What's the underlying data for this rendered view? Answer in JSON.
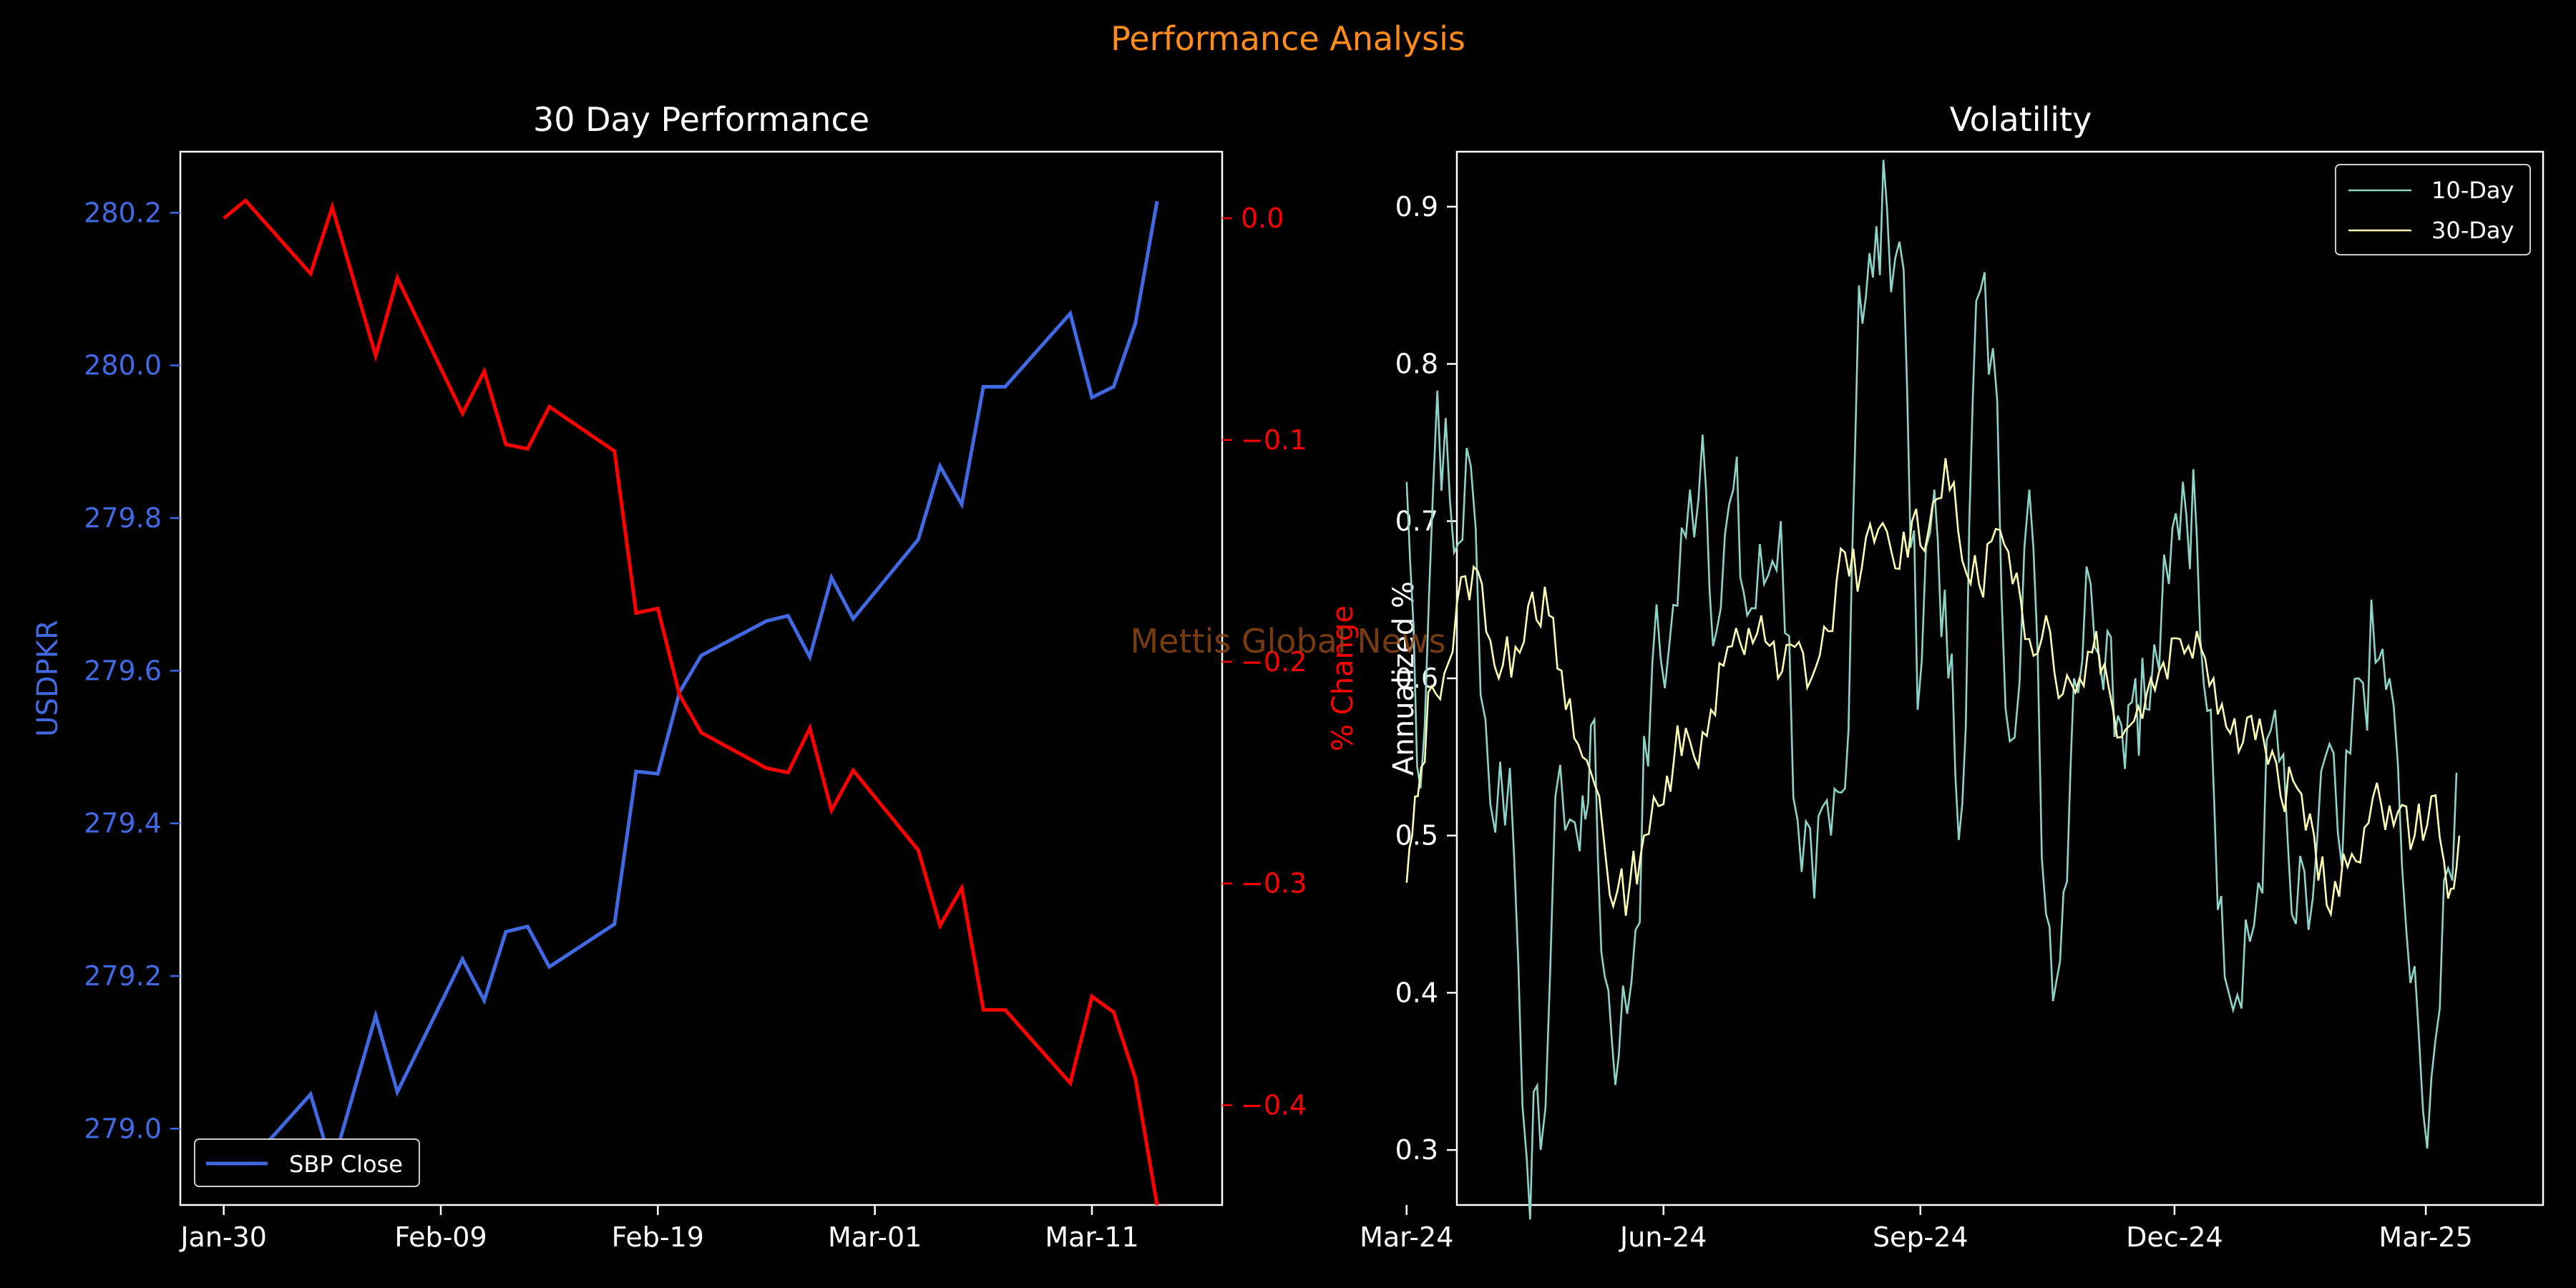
{
  "suptitle": "Performance Analysis",
  "watermark": "Mettis Global News",
  "colors": {
    "background": "#000000",
    "title_orange": "#ff8c1a",
    "close_line": "#4169e1",
    "change_line": "#ff0000",
    "vol10": "#8dd3c7",
    "vol30": "#ffffb3",
    "watermark": "#8b4513"
  },
  "chart_data": [
    {
      "type": "line",
      "title": "30 Day Performance",
      "xlabel": "",
      "ylabel": "USDPKR",
      "ylabel_right": "% Change",
      "ylim": [
        278.9,
        280.28
      ],
      "ylim_right": [
        -0.445,
        0.03
      ],
      "xlim": [
        "2025-01-28",
        "2025-03-17"
      ],
      "x_ticks": [
        "Jan-30",
        "Feb-09",
        "Feb-19",
        "Mar-01",
        "Mar-11"
      ],
      "x_tick_dates": [
        "2025-01-30",
        "2025-02-09",
        "2025-02-19",
        "2025-03-01",
        "2025-03-11"
      ],
      "y_ticks": [
        "279.0",
        "279.2",
        "279.4",
        "279.6",
        "279.8",
        "280.0",
        "280.2"
      ],
      "y_ticks_right": [
        "0.0",
        "−0.1",
        "−0.2",
        "−0.3",
        "−0.4"
      ],
      "legend_placement": "lower-left",
      "grid": false,
      "x": [
        "2025-01-30",
        "2025-01-31",
        "2025-02-03",
        "2025-02-04",
        "2025-02-06",
        "2025-02-07",
        "2025-02-10",
        "2025-02-11",
        "2025-02-12",
        "2025-02-13",
        "2025-02-14",
        "2025-02-17",
        "2025-02-18",
        "2025-02-19",
        "2025-02-20",
        "2025-02-21",
        "2025-02-24",
        "2025-02-25",
        "2025-02-26",
        "2025-02-27",
        "2025-02-28",
        "2025-03-03",
        "2025-03-04",
        "2025-03-05",
        "2025-03-06",
        "2025-03-07",
        "2025-03-10",
        "2025-03-11",
        "2025-03-12",
        "2025-03-13",
        "2025-03-14"
      ],
      "series": [
        {
          "name": "SBP Close",
          "axis": "left",
          "values": [
            278.97,
            278.95,
            279.045,
            278.95,
            279.148,
            279.048,
            279.222,
            279.168,
            279.258,
            279.265,
            279.212,
            279.268,
            279.468,
            279.465,
            279.572,
            279.62,
            279.665,
            279.672,
            279.618,
            279.722,
            279.668,
            279.772,
            279.868,
            279.818,
            279.972,
            279.972,
            280.068,
            279.958,
            279.972,
            280.055,
            280.215
          ]
        },
        {
          "name": "",
          "axis": "right",
          "values": [
            0.0,
            0.008,
            -0.025,
            0.005,
            -0.062,
            -0.027,
            -0.088,
            -0.069,
            -0.102,
            -0.104,
            -0.085,
            -0.105,
            -0.178,
            -0.176,
            -0.215,
            -0.232,
            -0.248,
            -0.25,
            -0.23,
            -0.267,
            -0.249,
            -0.285,
            -0.319,
            -0.302,
            -0.357,
            -0.357,
            -0.39,
            -0.351,
            -0.358,
            -0.388,
            -0.445
          ]
        }
      ]
    },
    {
      "type": "line",
      "title": "Volatility",
      "xlabel": "",
      "ylabel": "Annualized %",
      "ylim": [
        0.265,
        0.935
      ],
      "xlim": [
        "2024-03-19",
        "2025-04-12"
      ],
      "x_ticks": [
        "Mar-24",
        "Jun-24",
        "Sep-24",
        "Dec-24",
        "Mar-25"
      ],
      "x_tick_dates": [
        "2024-03-01",
        "2024-06-01",
        "2024-09-01",
        "2024-12-01",
        "2025-03-01"
      ],
      "y_ticks": [
        "0.3",
        "0.4",
        "0.5",
        "0.6",
        "0.7",
        "0.8",
        "0.9"
      ],
      "legend_placement": "upper-right",
      "grid": false,
      "series": [
        {
          "name": "10-Day",
          "dates": [
            "2024-03-01",
            "2024-03-06",
            "2024-03-12",
            "2024-03-18",
            "2024-03-24",
            "2024-03-31",
            "2024-04-07",
            "2024-04-13",
            "2024-04-18",
            "2024-04-25",
            "2024-05-02",
            "2024-05-06",
            "2024-05-11",
            "2024-05-16",
            "2024-05-22",
            "2024-05-28",
            "2024-06-03",
            "2024-06-09",
            "2024-06-15",
            "2024-06-20",
            "2024-06-26",
            "2024-07-01",
            "2024-07-07",
            "2024-07-13",
            "2024-07-19",
            "2024-07-25",
            "2024-07-31",
            "2024-08-05",
            "2024-08-10",
            "2024-08-15",
            "2024-08-20",
            "2024-08-26",
            "2024-08-31",
            "2024-09-06",
            "2024-09-11",
            "2024-09-16",
            "2024-09-21",
            "2024-09-27",
            "2024-10-03",
            "2024-10-10",
            "2024-10-16",
            "2024-10-21",
            "2024-10-26",
            "2024-11-01",
            "2024-11-07",
            "2024-11-12",
            "2024-11-17",
            "2024-11-22",
            "2024-11-29",
            "2024-12-04",
            "2024-12-09",
            "2024-12-14",
            "2024-12-19",
            "2024-12-25",
            "2024-12-31",
            "2025-01-06",
            "2025-01-12",
            "2025-01-18",
            "2025-01-24",
            "2025-01-30",
            "2025-02-05",
            "2025-02-11",
            "2025-02-16",
            "2025-02-22",
            "2025-02-28",
            "2025-03-06",
            "2025-03-12"
          ],
          "values": [
            0.725,
            0.53,
            0.783,
            0.68,
            0.735,
            0.52,
            0.543,
            0.295,
            0.3,
            0.545,
            0.49,
            0.57,
            0.41,
            0.36,
            0.44,
            0.61,
            0.62,
            0.69,
            0.755,
            0.63,
            0.72,
            0.64,
            0.66,
            0.7,
            0.51,
            0.46,
            0.5,
            0.53,
            0.85,
            0.855,
            0.9,
            0.86,
            0.58,
            0.72,
            0.6,
            0.52,
            0.84,
            0.81,
            0.56,
            0.72,
            0.45,
            0.42,
            0.6,
            0.66,
            0.63,
            0.57,
            0.6,
            0.58,
            0.66,
            0.725,
            0.69,
            0.58,
            0.41,
            0.39,
            0.47,
            0.58,
            0.45,
            0.44,
            0.55,
            0.48,
            0.6,
            0.61,
            0.6,
            0.44,
            0.325,
            0.39,
            0.54
          ]
        },
        {
          "name": "30-Day",
          "dates": [
            "2024-03-01",
            "2024-03-05",
            "2024-03-10",
            "2024-03-16",
            "2024-03-22",
            "2024-03-28",
            "2024-04-03",
            "2024-04-09",
            "2024-04-15",
            "2024-04-21",
            "2024-04-27",
            "2024-05-03",
            "2024-05-09",
            "2024-05-14",
            "2024-05-20",
            "2024-05-25",
            "2024-06-01",
            "2024-06-06",
            "2024-06-12",
            "2024-06-18",
            "2024-06-24",
            "2024-06-30",
            "2024-07-06",
            "2024-07-12",
            "2024-07-18",
            "2024-07-24",
            "2024-07-30",
            "2024-08-05",
            "2024-08-11",
            "2024-08-17",
            "2024-08-23",
            "2024-08-29",
            "2024-09-04",
            "2024-09-10",
            "2024-09-16",
            "2024-09-22",
            "2024-09-28",
            "2024-10-04",
            "2024-10-10",
            "2024-10-16",
            "2024-10-22",
            "2024-10-28",
            "2024-11-03",
            "2024-11-09",
            "2024-11-15",
            "2024-11-21",
            "2024-11-27",
            "2024-12-03",
            "2024-12-09",
            "2024-12-15",
            "2024-12-21",
            "2024-12-27",
            "2025-01-02",
            "2025-01-08",
            "2025-01-14",
            "2025-01-20",
            "2025-01-26",
            "2025-02-01",
            "2025-02-07",
            "2025-02-13",
            "2025-02-19",
            "2025-02-25",
            "2025-03-03",
            "2025-03-09",
            "2025-03-13"
          ],
          "values": [
            0.47,
            0.525,
            0.595,
            0.61,
            0.665,
            0.66,
            0.6,
            0.62,
            0.655,
            0.64,
            0.58,
            0.55,
            0.525,
            0.455,
            0.47,
            0.5,
            0.52,
            0.57,
            0.55,
            0.58,
            0.62,
            0.615,
            0.64,
            0.6,
            0.62,
            0.6,
            0.63,
            0.68,
            0.67,
            0.695,
            0.67,
            0.7,
            0.695,
            0.74,
            0.675,
            0.66,
            0.695,
            0.66,
            0.625,
            0.64,
            0.59,
            0.6,
            0.63,
            0.58,
            0.57,
            0.59,
            0.61,
            0.625,
            0.63,
            0.6,
            0.565,
            0.575,
            0.56,
            0.525,
            0.53,
            0.5,
            0.45,
            0.48,
            0.505,
            0.52,
            0.515,
            0.5,
            0.525,
            0.46,
            0.5
          ]
        }
      ]
    }
  ]
}
